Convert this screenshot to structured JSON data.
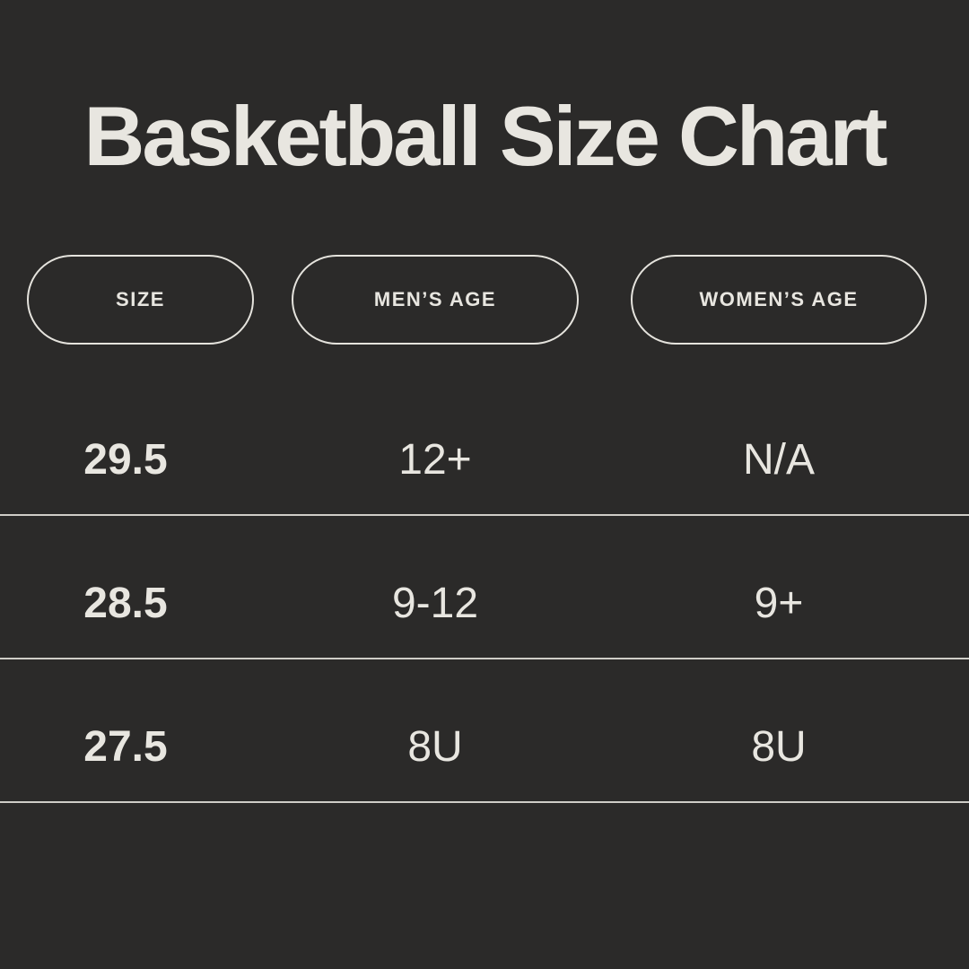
{
  "page": {
    "title": "Basketball Size Chart"
  },
  "colors": {
    "background": "#2b2a29",
    "text": "#e8e6e0",
    "pill_border": "#e5e3dd",
    "divider_line": "#cfcdc7"
  },
  "table": {
    "columns": [
      {
        "label": "SIZE"
      },
      {
        "label": "MEN’S AGE"
      },
      {
        "label": "WOMEN’S AGE"
      }
    ]
  },
  "chart_data": {
    "type": "table",
    "title": "Basketball Size Chart",
    "columns": [
      "SIZE",
      "MEN’S AGE",
      "WOMEN’S AGE"
    ],
    "rows": [
      [
        "29.5",
        "12+",
        "N/A"
      ],
      [
        "28.5",
        "9-12",
        "9+"
      ],
      [
        "27.5",
        "8U",
        "8U"
      ]
    ],
    "layout_hints": {
      "header_style": "outlined-pill",
      "row_dividers": true,
      "background": "dark",
      "first_column_bold": true
    }
  }
}
